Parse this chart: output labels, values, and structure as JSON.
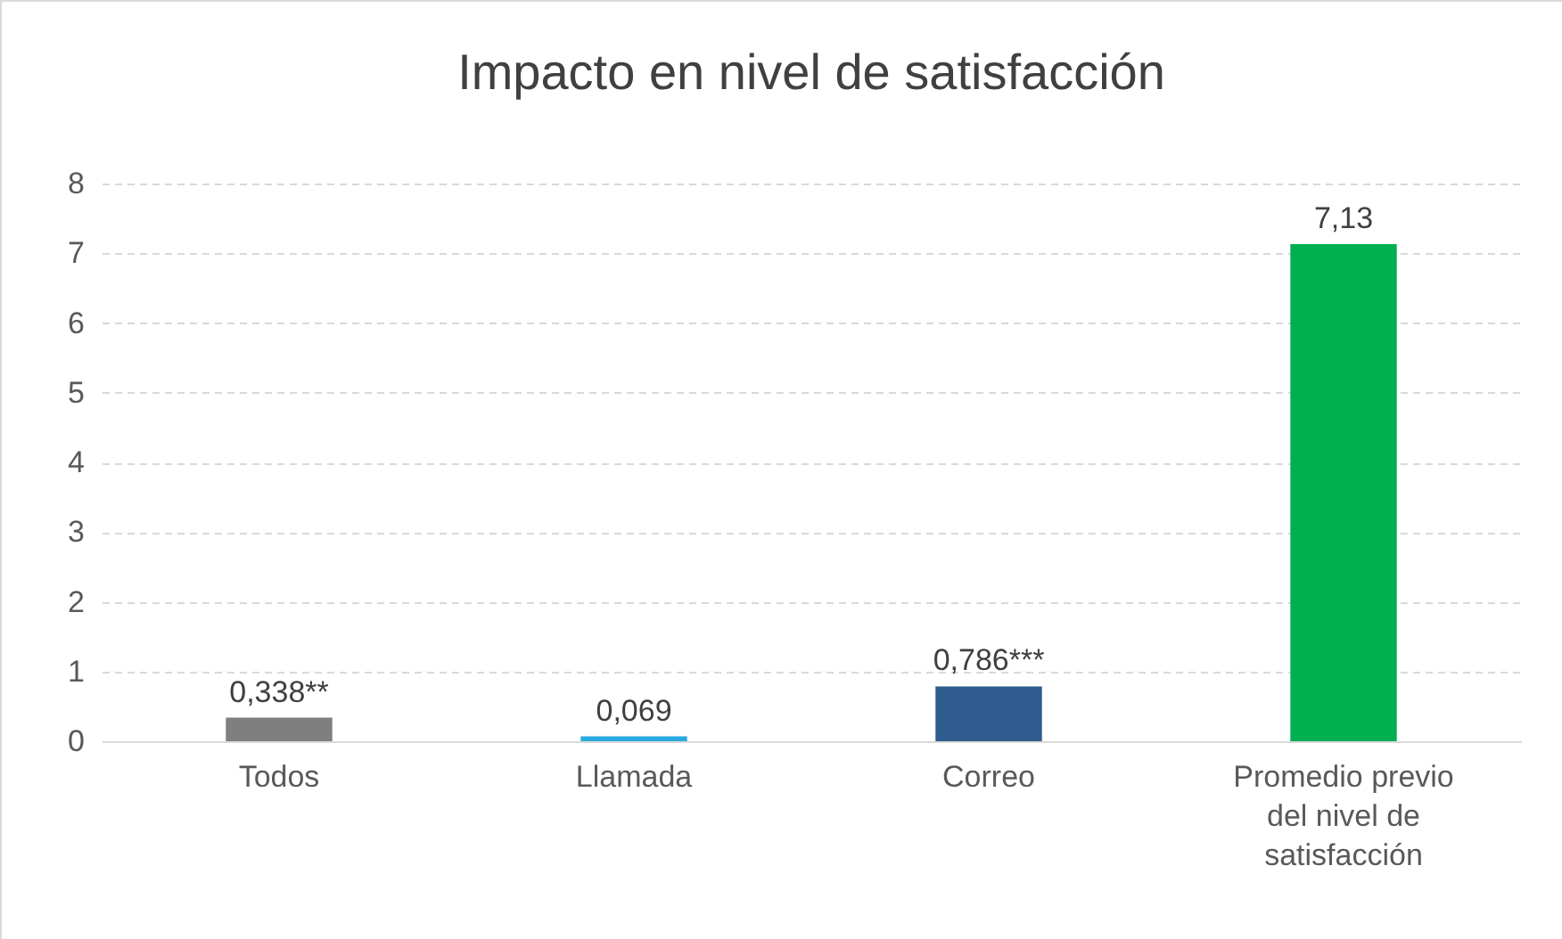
{
  "chart_data": {
    "type": "bar",
    "title": "Impacto en nivel de satisfacción",
    "categories": [
      "Todos",
      "Llamada",
      "Correo",
      "Promedio previo del nivel de satisfacción"
    ],
    "values": [
      0.338,
      0.069,
      0.786,
      7.13
    ],
    "colors": [
      "#7f7f7f",
      "#29aae1",
      "#2e5c8e",
      "#00b050"
    ],
    "value_labels": [
      "0,338**",
      "0,069",
      "0,786***",
      "7,13"
    ],
    "ylim": [
      0,
      8
    ],
    "yticks": [
      0,
      1,
      2,
      3,
      4,
      5,
      6,
      7,
      8
    ],
    "grid": "y"
  }
}
